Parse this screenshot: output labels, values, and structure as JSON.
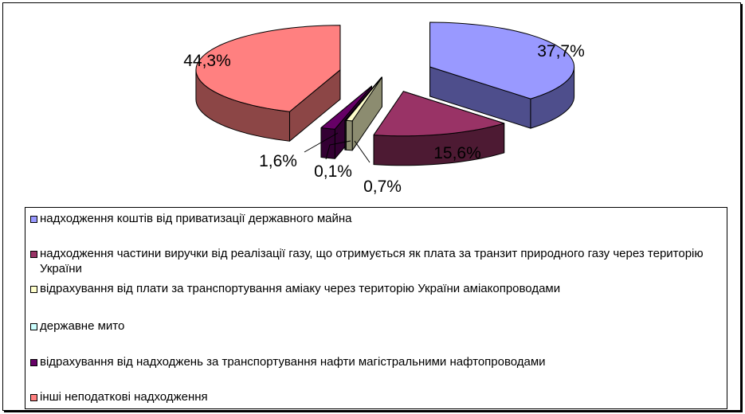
{
  "chart_data": {
    "type": "pie",
    "title": "",
    "slices": [
      {
        "label": "надходження коштів від приватизації державного майна",
        "value": 37.7,
        "value_label": "37,7%",
        "color": "#9999ff",
        "side_color": "#4e4e8c"
      },
      {
        "label": "надходження частини виручки від реалізації газу, що отримується як плата за транзит природного газу через територію України",
        "value": 15.6,
        "value_label": "15,6%",
        "color": "#993366",
        "side_color": "#4d1a33"
      },
      {
        "label": "відрахування від плати за транспортування аміаку через територію України аміакопроводами",
        "value": 0.7,
        "value_label": "0,7%",
        "color": "#ffffcc",
        "side_color": "#8c8c70"
      },
      {
        "label": "державне мито",
        "value": 0.1,
        "value_label": "0,1%",
        "color": "#ccffff",
        "side_color": "#708c8c"
      },
      {
        "label": "відрахування від надходжень за транспортування нафти магістральними нафтопроводами",
        "value": 1.6,
        "value_label": "1,6%",
        "color": "#660066",
        "side_color": "#330033"
      },
      {
        "label": "інші неподаткові надходження",
        "value": 44.3,
        "value_label": "44,3%",
        "color": "#ff8080",
        "side_color": "#8c4646"
      }
    ],
    "style": "3d-exploded",
    "legend_position": "bottom"
  }
}
